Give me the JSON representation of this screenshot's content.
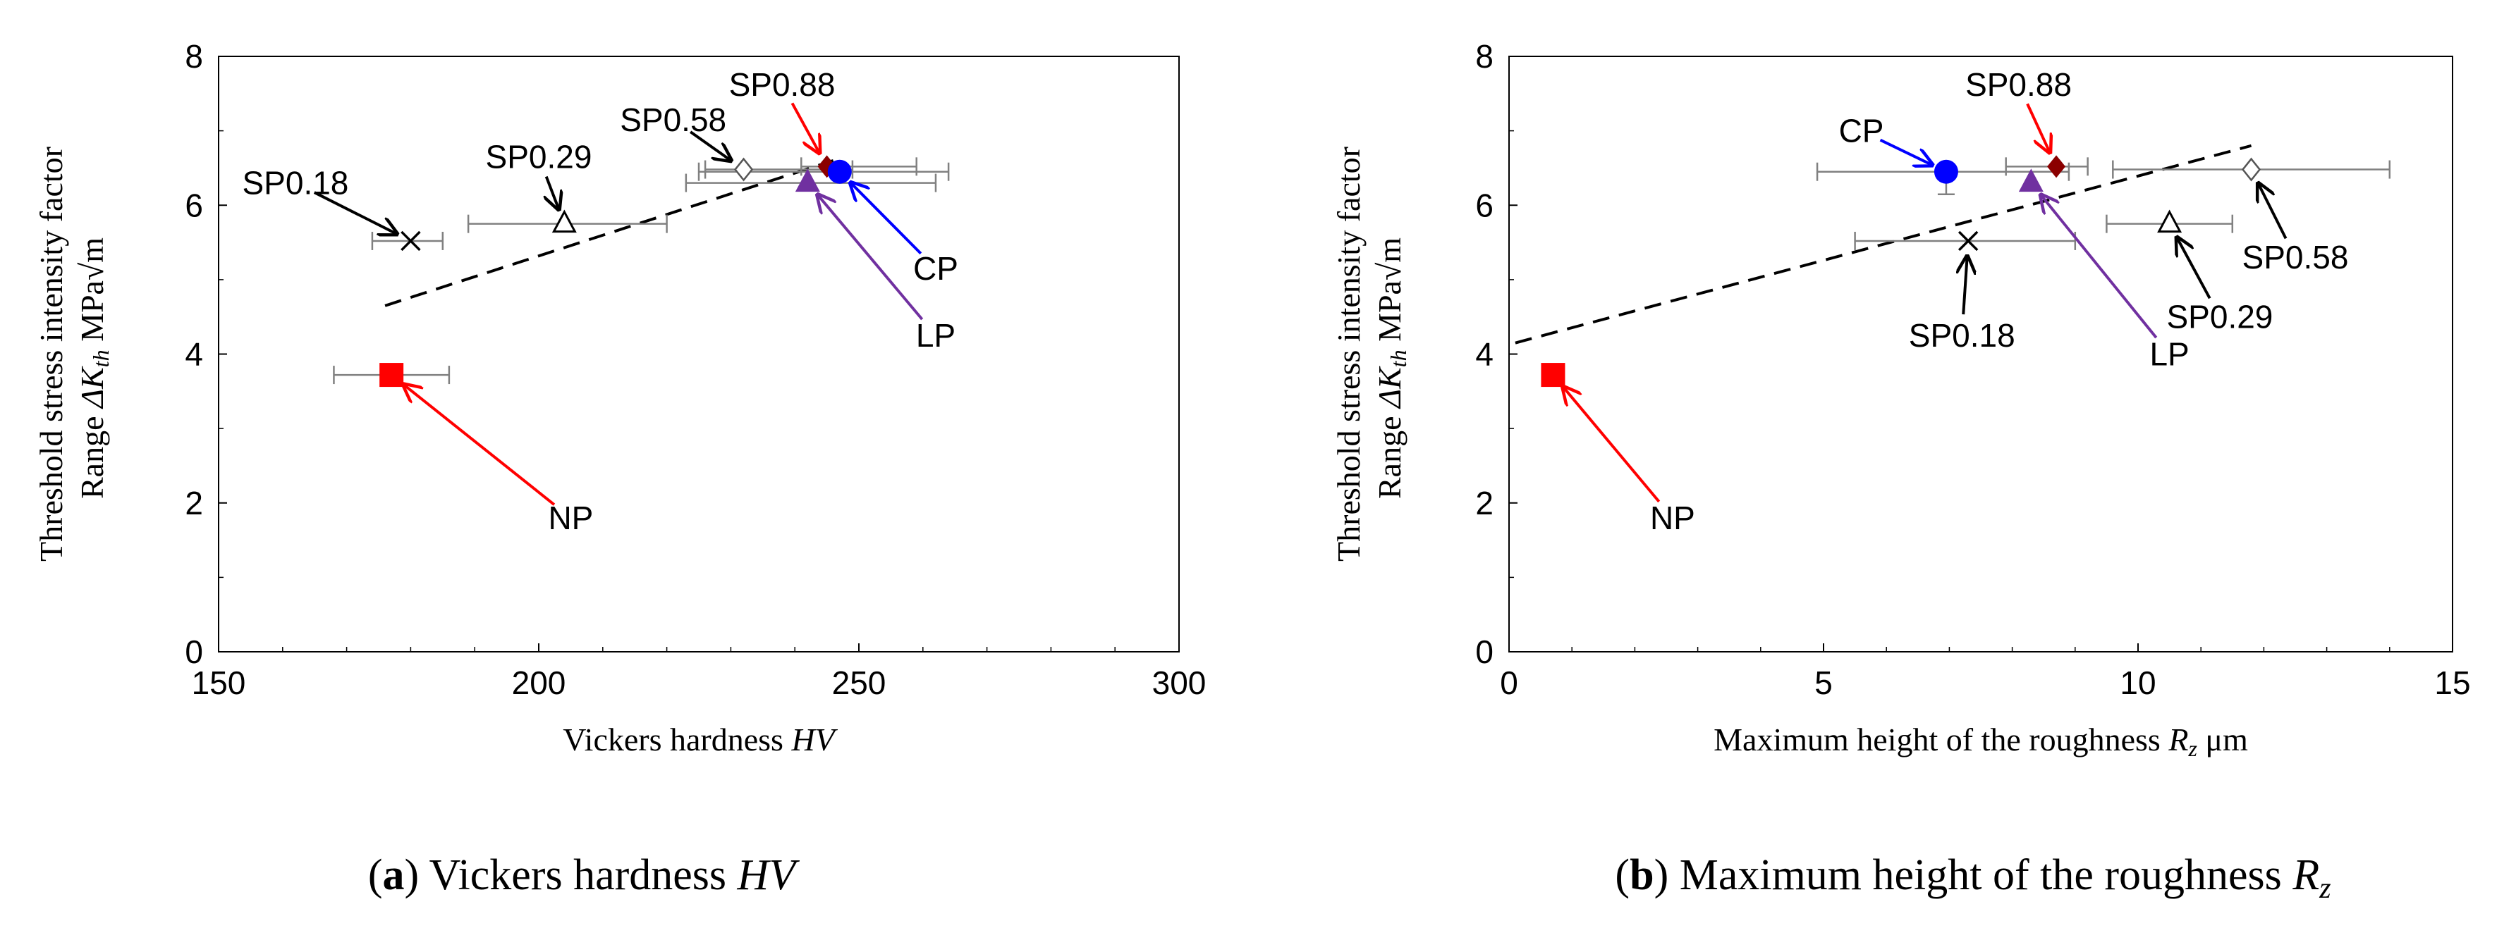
{
  "chart_data": [
    {
      "type": "scatter",
      "panel": "a",
      "xlabel_text": "Vickers hardness ",
      "xlabel_italic": "HV",
      "ylabel_line1": "Threshold stress intensity factor",
      "ylabel_line2_prefix": "Range ",
      "ylabel_line2_symbol": "ΔK",
      "ylabel_line2_sub": "th",
      "ylabel_line2_unit": "MPa√m",
      "xlim": [
        150,
        300
      ],
      "ylim": [
        0,
        8
      ],
      "xticks": [
        150,
        200,
        250,
        300
      ],
      "yticks": [
        0,
        2,
        4,
        6,
        8
      ],
      "caption_letter": "a",
      "caption_text": " Vickers hardness ",
      "caption_italic": "HV",
      "trendline": {
        "x": [
          176,
          246
        ],
        "y": [
          4.65,
          6.6
        ]
      },
      "series": [
        {
          "name": "NP",
          "x": 177,
          "y": 3.72,
          "marker": "square",
          "color": "#ff0000",
          "xerr": [
            168,
            186
          ],
          "label": {
            "text": "NP",
            "lx": 205,
            "ly": 1.8,
            "color": "#ff0000"
          }
        },
        {
          "name": "SP0.18",
          "x": 180,
          "y": 5.52,
          "marker": "x",
          "color": "#000000",
          "xerr": [
            174,
            185
          ],
          "label": {
            "text": "SP0.18",
            "lx": 162,
            "ly": 6.3,
            "color": "#000000"
          }
        },
        {
          "name": "SP0.29",
          "x": 204,
          "y": 5.75,
          "marker": "triangle",
          "color": "#000000",
          "xerr": [
            189,
            220
          ],
          "label": {
            "text": "SP0.29",
            "lx": 200,
            "ly": 6.65,
            "color": "#000000"
          }
        },
        {
          "name": "SP0.58",
          "x": 232,
          "y": 6.48,
          "marker": "diamond-open",
          "color": "#000000",
          "xerr": [
            226,
            249
          ],
          "label": {
            "text": "SP0.58",
            "lx": 221,
            "ly": 7.15,
            "color": "#000000"
          }
        },
        {
          "name": "SP0.88",
          "x": 245,
          "y": 6.52,
          "marker": "diamond",
          "color": "#8b0000",
          "xerr": [
            241,
            259
          ],
          "label": {
            "text": "SP0.88",
            "lx": 238,
            "ly": 7.62,
            "color": "#000000"
          }
        },
        {
          "name": "CP",
          "x": 247,
          "y": 6.45,
          "marker": "circle",
          "color": "#0000ff",
          "xerr": [
            225,
            264
          ],
          "label": {
            "text": "CP",
            "lx": 262,
            "ly": 5.15,
            "color": "#000000"
          }
        },
        {
          "name": "LP",
          "x": 242,
          "y": 6.3,
          "marker": "triangle",
          "color": "#7030a0",
          "xerr": [
            223,
            262
          ],
          "label": {
            "text": "LP",
            "lx": 262,
            "ly": 4.25,
            "color": "#000000"
          }
        }
      ]
    },
    {
      "type": "scatter",
      "panel": "b",
      "xlabel_text": "Maximum height of the roughness ",
      "xlabel_italic": "R",
      "xlabel_sub": "z",
      "xlabel_unit": " μm",
      "ylabel_line1": "Threshold stress intensity factor",
      "ylabel_line2_prefix": "Range ",
      "ylabel_line2_symbol": "ΔK",
      "ylabel_line2_sub": "th",
      "ylabel_line2_unit": "MPa√m",
      "xlim": [
        0,
        15
      ],
      "ylim": [
        0,
        8
      ],
      "xticks": [
        0,
        5,
        10,
        15
      ],
      "yticks": [
        0,
        2,
        4,
        6,
        8
      ],
      "caption_letter": "b",
      "caption_text": " Maximum height of the roughness ",
      "caption_italic": "R",
      "caption_sub": "z",
      "trendline": {
        "x": [
          0.1,
          11.8
        ],
        "y": [
          4.15,
          6.8
        ]
      },
      "series": [
        {
          "name": "NP",
          "x": 0.7,
          "y": 3.72,
          "marker": "square",
          "color": "#ff0000",
          "xerr": null,
          "label": {
            "text": "NP",
            "lx": 2.6,
            "ly": 1.8,
            "color": "#ff0000"
          }
        },
        {
          "name": "SP0.18",
          "x": 7.3,
          "y": 5.52,
          "marker": "x",
          "color": "#000000",
          "xerr": [
            5.5,
            9.0
          ],
          "label": {
            "text": "SP0.18",
            "lx": 7.2,
            "ly": 4.25,
            "color": "#000000"
          }
        },
        {
          "name": "SP0.29",
          "x": 10.5,
          "y": 5.75,
          "marker": "triangle",
          "color": "#000000",
          "xerr": [
            9.5,
            11.5
          ],
          "label": {
            "text": "SP0.29",
            "lx": 11.3,
            "ly": 4.5,
            "color": "#000000"
          }
        },
        {
          "name": "SP0.58",
          "x": 11.8,
          "y": 6.48,
          "marker": "diamond-open",
          "color": "#000000",
          "xerr": [
            9.6,
            14.0
          ],
          "label": {
            "text": "SP0.58",
            "lx": 12.5,
            "ly": 5.3,
            "color": "#000000"
          }
        },
        {
          "name": "SP0.88",
          "x": 8.7,
          "y": 6.52,
          "marker": "diamond",
          "color": "#8b0000",
          "xerr": [
            7.9,
            9.2
          ],
          "label": {
            "text": "SP0.88",
            "lx": 8.1,
            "ly": 7.62,
            "color": "#000000"
          }
        },
        {
          "name": "CP",
          "x": 6.95,
          "y": 6.45,
          "marker": "circle",
          "color": "#0000ff",
          "xerr": [
            4.9,
            8.9
          ],
          "label": {
            "text": "CP",
            "lx": 5.6,
            "ly": 7.0,
            "color": "#000000"
          }
        },
        {
          "name": "LP",
          "x": 8.3,
          "y": 6.3,
          "marker": "triangle",
          "color": "#7030a0",
          "xerr": null,
          "label": {
            "text": "LP",
            "lx": 10.5,
            "ly": 4.0,
            "color": "#000000"
          }
        }
      ]
    }
  ]
}
